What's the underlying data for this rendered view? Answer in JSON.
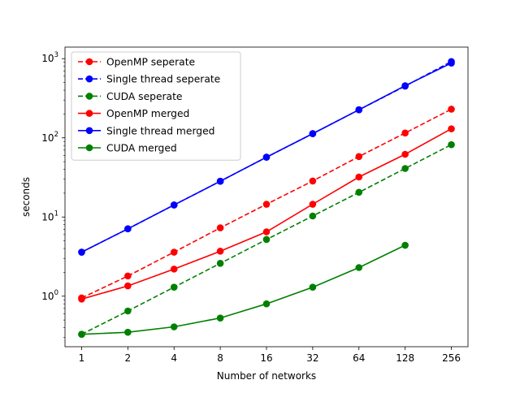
{
  "chart_data": {
    "type": "line",
    "xlabel": "Number of networks",
    "ylabel": "seconds",
    "x": [
      1,
      2,
      4,
      8,
      16,
      32,
      64,
      128,
      256
    ],
    "x_tick_labels": [
      "1",
      "2",
      "4",
      "8",
      "16",
      "32",
      "64",
      "128",
      "256"
    ],
    "x_scale": "log2",
    "y_scale": "log10",
    "ylim": [
      0.23,
      1400
    ],
    "y_ticks": [
      {
        "value": 1,
        "base": "10",
        "exp": "0"
      },
      {
        "value": 10,
        "base": "10",
        "exp": "1"
      },
      {
        "value": 100,
        "base": "10",
        "exp": "2"
      },
      {
        "value": 1000,
        "base": "10",
        "exp": "3"
      }
    ],
    "grid": false,
    "legend_position": "top-left",
    "series": [
      {
        "name": "OpenMP seperate",
        "color": "#ff0000",
        "dashed": true,
        "values": [
          0.95,
          1.8,
          3.6,
          7.3,
          14.5,
          28.5,
          58,
          115,
          230
        ]
      },
      {
        "name": "Single thread seperate",
        "color": "#0000ff",
        "dashed": true,
        "values": [
          3.6,
          7.1,
          14.2,
          28.3,
          57,
          113,
          226,
          450,
          920
        ]
      },
      {
        "name": "CUDA seperate",
        "color": "#008000",
        "dashed": true,
        "values": [
          0.33,
          0.65,
          1.3,
          2.6,
          5.2,
          10.3,
          20.5,
          41,
          82
        ]
      },
      {
        "name": "OpenMP merged",
        "color": "#ff0000",
        "dashed": false,
        "values": [
          0.92,
          1.35,
          2.2,
          3.7,
          6.5,
          14.5,
          32,
          62,
          130
        ]
      },
      {
        "name": "Single thread merged",
        "color": "#0000ff",
        "dashed": false,
        "values": [
          3.6,
          7.1,
          14.2,
          28.3,
          57,
          113,
          226,
          455,
          880
        ]
      },
      {
        "name": "CUDA merged",
        "color": "#008000",
        "dashed": false,
        "values": [
          0.33,
          0.35,
          0.41,
          0.53,
          0.8,
          1.3,
          2.3,
          4.4,
          null
        ]
      }
    ]
  }
}
